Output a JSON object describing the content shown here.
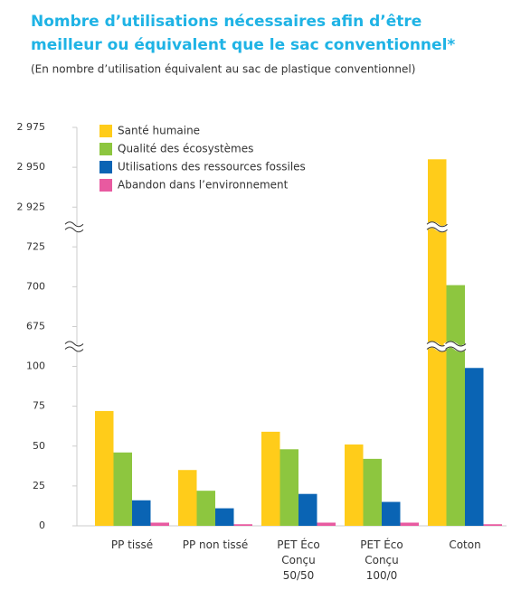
{
  "chart_data": {
    "type": "bar",
    "title": [
      "Nombre d’utilisations nécessaires afin d’être",
      "meilleur ou équivalent que le sac conventionnel*"
    ],
    "subtitle": "(En nombre d’utilisation équivalent au sac de plastique conventionnel)",
    "categories": [
      "PP tissé",
      "PP non tissé",
      "PET Éco\nConçu\n50/50",
      "PET Éco\nConçu\n100/0",
      "Coton"
    ],
    "series": [
      {
        "name": "Santé humaine",
        "color": "#ffcc1a",
        "values": [
          72,
          35,
          59,
          51,
          2955
        ]
      },
      {
        "name": "Qualité des écosystèmes",
        "color": "#8dc63f",
        "values": [
          46,
          22,
          48,
          42,
          701
        ]
      },
      {
        "name": "Utilisations des ressources fossiles",
        "color": "#0a64b4",
        "values": [
          16,
          11,
          20,
          15,
          99
        ]
      },
      {
        "name": "Abandon dans l’environnement",
        "color": "#e85aa0",
        "values": [
          2,
          1,
          2,
          2,
          1
        ]
      }
    ],
    "ylim": [
      0,
      2975
    ],
    "y_segments": [
      [
        0,
        100
      ],
      [
        675,
        725
      ],
      [
        2925,
        2975
      ]
    ],
    "yticks": [
      0,
      25,
      50,
      75,
      100,
      675,
      700,
      725,
      {
        "value": 2925,
        "label": "2 925"
      },
      {
        "value": 2950,
        "label": "2 950"
      },
      {
        "value": 2975,
        "label": "2 975"
      }
    ],
    "legend": "top-left"
  }
}
